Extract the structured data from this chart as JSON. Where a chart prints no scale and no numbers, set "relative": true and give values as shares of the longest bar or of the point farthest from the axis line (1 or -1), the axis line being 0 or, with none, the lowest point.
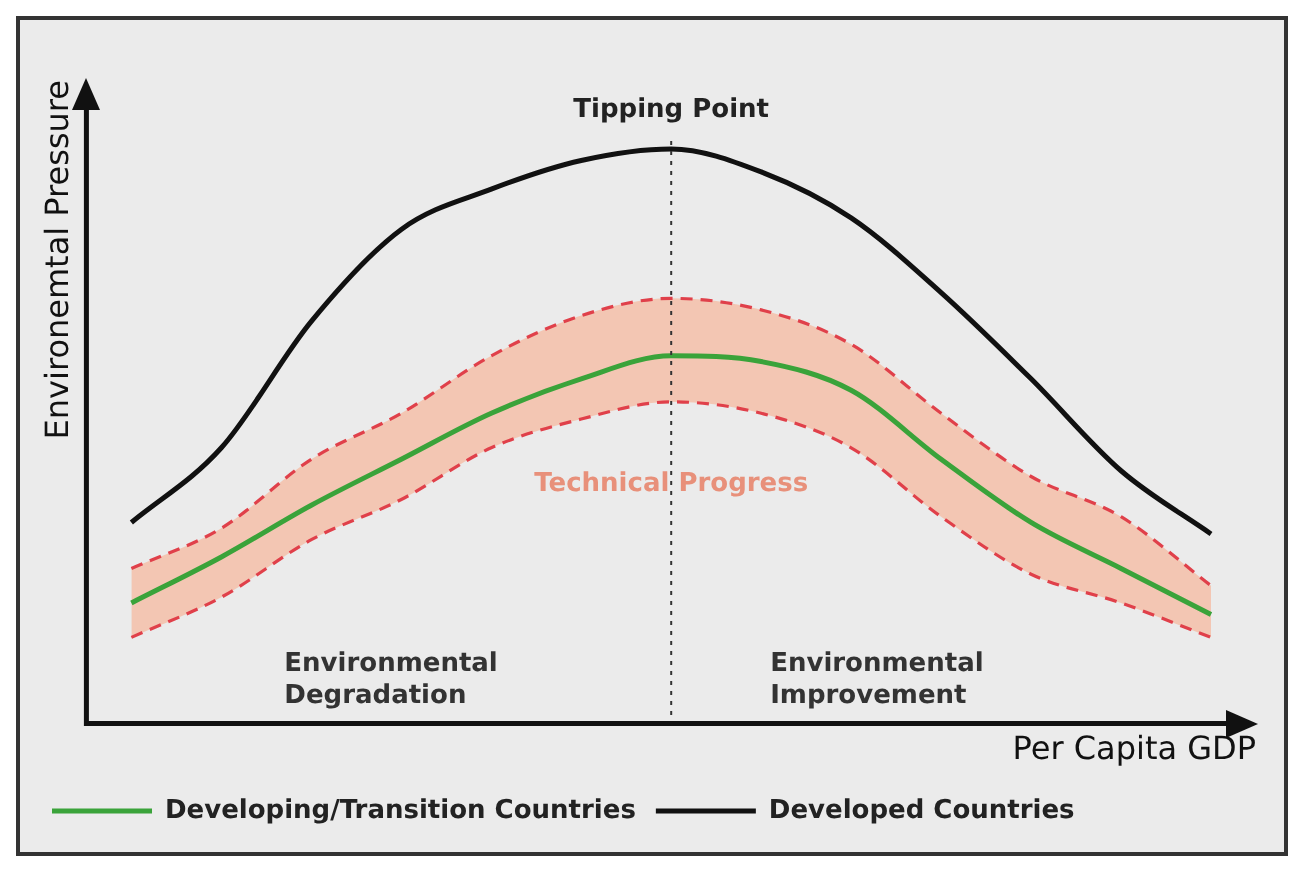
{
  "chart_data": {
    "type": "line",
    "relative": true,
    "xlabel": "Per Capita GDP",
    "ylabel": "Environemtal Pressure",
    "categories": [
      null,
      null,
      null,
      null,
      null,
      null,
      null,
      null,
      null,
      null,
      null,
      null,
      null
    ],
    "series": [
      {
        "name": "Developed Countries",
        "color": "#111111",
        "values": [
          0.35,
          0.48,
          0.7,
          0.86,
          0.93,
          0.98,
          1.0,
          0.96,
          0.88,
          0.75,
          0.6,
          0.44,
          0.33
        ]
      },
      {
        "color": "#e0404a",
        "line_style": "dashed",
        "values": [
          0.27,
          0.34,
          0.46,
          0.54,
          0.64,
          0.71,
          0.74,
          0.72,
          0.66,
          0.54,
          0.43,
          0.36,
          0.24
        ]
      },
      {
        "color": "#e0404a",
        "line_style": "dashed",
        "values": [
          0.15,
          0.22,
          0.32,
          0.39,
          0.48,
          0.53,
          0.56,
          0.54,
          0.48,
          0.36,
          0.26,
          0.21,
          0.15
        ]
      },
      {
        "name": "Developing/Transition Countries",
        "color": "#3aa33a",
        "values": [
          0.21,
          0.29,
          0.38,
          0.46,
          0.54,
          0.6,
          0.64,
          0.63,
          0.58,
          0.46,
          0.35,
          0.27,
          0.19
        ],
        "lower": [
          0.15,
          0.22,
          0.32,
          0.39,
          0.48,
          0.53,
          0.56,
          0.54,
          0.48,
          0.36,
          0.26,
          0.21,
          0.15
        ],
        "upper": [
          0.27,
          0.34,
          0.46,
          0.54,
          0.64,
          0.71,
          0.74,
          0.72,
          0.66,
          0.54,
          0.43,
          0.36,
          0.24
        ]
      }
    ],
    "annotations": [
      "Tipping Point",
      "Technical Progress",
      "Environmental\nDegradation",
      "Environmental\nImprovement"
    ],
    "legend": "bottom left",
    "grid": false,
    "marker": "none",
    "line_style": "solid"
  }
}
